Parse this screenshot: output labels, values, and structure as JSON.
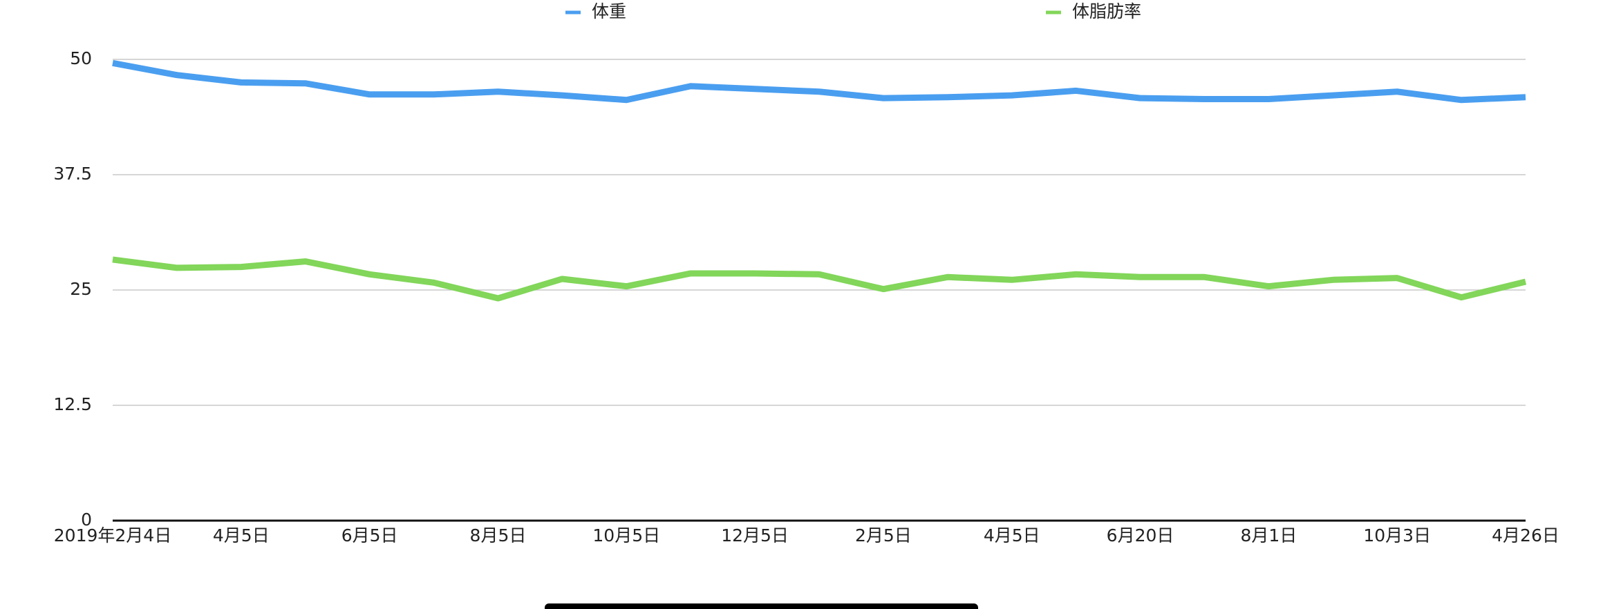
{
  "chart_data": {
    "type": "line",
    "categories": [
      "2019年2月4日",
      null,
      "4月5日",
      null,
      "6月5日",
      null,
      "8月5日",
      null,
      "10月5日",
      null,
      "12月5日",
      null,
      "2月5日",
      null,
      "4月5日",
      null,
      "6月20日",
      null,
      "8月1日",
      null,
      "10月3日",
      null,
      "4月26日"
    ],
    "series": [
      {
        "name": "体重",
        "color": "#4a9ef0",
        "values": [
          49.6,
          48.3,
          47.5,
          47.4,
          46.2,
          46.2,
          46.5,
          46.1,
          45.6,
          47.1,
          46.8,
          46.5,
          45.8,
          45.9,
          46.1,
          46.6,
          45.8,
          45.7,
          45.7,
          46.1,
          46.5,
          45.6,
          45.9
        ]
      },
      {
        "name": "体脂肪率",
        "color": "#82d65a",
        "values": [
          28.3,
          27.4,
          27.5,
          28.1,
          26.7,
          25.8,
          24.1,
          26.2,
          25.4,
          26.8,
          26.8,
          26.7,
          25.1,
          26.4,
          26.1,
          26.7,
          26.4,
          26.4,
          25.4,
          26.1,
          26.3,
          24.2,
          25.9
        ]
      }
    ],
    "ylim": [
      0,
      50
    ],
    "yticks": [
      0,
      12.5,
      25,
      37.5,
      50
    ],
    "grid": true,
    "legend": "top"
  }
}
